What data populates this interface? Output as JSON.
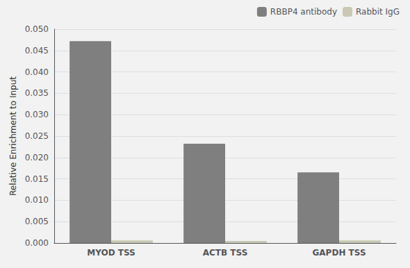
{
  "chart_data": {
    "type": "bar",
    "categories": [
      "MYOD TSS",
      "ACTB TSS",
      "GAPDH TSS"
    ],
    "series": [
      {
        "name": "RBBP4 antibody",
        "color": "#7f7f7f",
        "values": [
          0.0472,
          0.0232,
          0.0165
        ]
      },
      {
        "name": "Rabbit IgG",
        "color": "#c8c8b4",
        "values": [
          0.0006,
          0.0005,
          0.0006
        ]
      }
    ],
    "ylabel": "Relative Enrichment to Input",
    "ylim": [
      0,
      0.05
    ],
    "yticks": [
      {
        "value": 0,
        "label": "0.000"
      },
      0.005,
      {
        "value": 0.01,
        "label": "0.010"
      },
      0.015,
      {
        "value": 0.02,
        "label": "0.020"
      },
      0.025,
      {
        "value": 0.03,
        "label": "0.030"
      },
      0.035,
      {
        "value": 0.04,
        "label": "0.040"
      },
      0.045,
      {
        "value": 0.05,
        "label": "0.050"
      }
    ],
    "grid": true,
    "legend": "upper right"
  }
}
